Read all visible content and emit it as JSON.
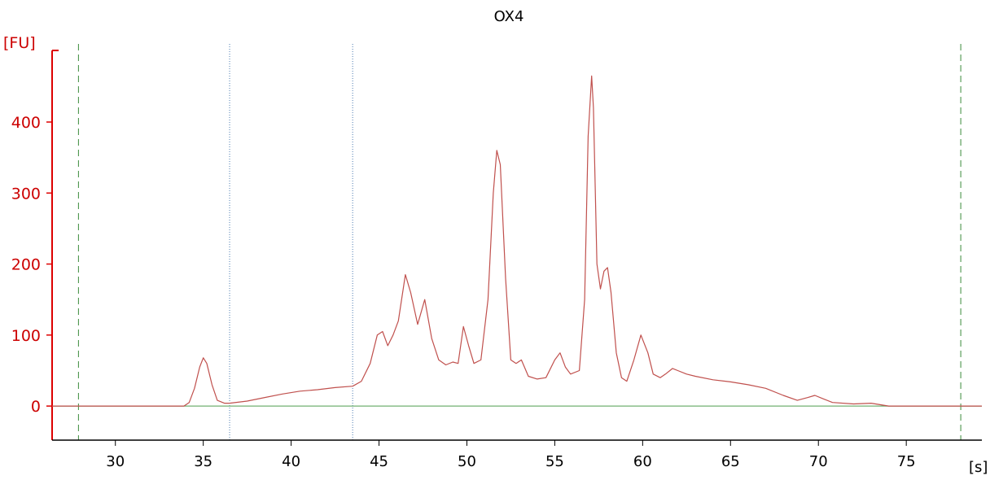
{
  "chart_data": {
    "type": "line",
    "title": "OX4",
    "xlabel": "[s]",
    "ylabel": "[FU]",
    "xlim": [
      26.4,
      79.3
    ],
    "ylim": [
      -48,
      510
    ],
    "xticks": [
      30,
      35,
      40,
      45,
      50,
      55,
      60,
      65,
      70,
      75
    ],
    "yticks": [
      0,
      100,
      200,
      300,
      400
    ],
    "grid": false,
    "colors": {
      "trace": "#c0504d",
      "y_axis": "#dd0000",
      "baseline": "#70b070",
      "marker_dashed": "#3a8a3a",
      "marker_dotted": "#4a7ab0"
    },
    "markers": [
      {
        "x": 27.9,
        "style": "dashed"
      },
      {
        "x": 36.5,
        "style": "dotted"
      },
      {
        "x": 43.5,
        "style": "dotted"
      },
      {
        "x": 78.1,
        "style": "dashed"
      }
    ],
    "baseline": 0,
    "series": [
      {
        "x": [
          26.4,
          33.9,
          34.2,
          34.5,
          34.8,
          35.0,
          35.2,
          35.5,
          35.8,
          36.2,
          36.5,
          37.5,
          38.5,
          39.5,
          40.5,
          41.5,
          42.5,
          43.5,
          44.0,
          44.5,
          44.9,
          45.2,
          45.5,
          45.8,
          46.1,
          46.5,
          46.8,
          47.2,
          47.6,
          48.0,
          48.4,
          48.8,
          49.2,
          49.5,
          49.8,
          50.1,
          50.4,
          50.8,
          51.2,
          51.5,
          51.7,
          51.9,
          52.2,
          52.5,
          52.8,
          53.1,
          53.5,
          54.0,
          54.5,
          55.0,
          55.3,
          55.6,
          55.9,
          56.4,
          56.7,
          56.9,
          57.1,
          57.2,
          57.4,
          57.6,
          57.8,
          58.0,
          58.2,
          58.5,
          58.8,
          59.1,
          59.5,
          59.9,
          60.3,
          60.6,
          61.0,
          61.3,
          61.7,
          62.0,
          62.5,
          63.0,
          64.0,
          65.0,
          66.0,
          67.0,
          68.0,
          68.8,
          69.4,
          69.8,
          70.3,
          70.8,
          72.0,
          73.0,
          73.5,
          74.0,
          79.3
        ],
        "y": [
          0,
          0,
          5,
          25,
          55,
          68,
          60,
          30,
          8,
          4,
          4,
          7,
          12,
          17,
          21,
          23,
          26,
          28,
          35,
          60,
          100,
          105,
          85,
          100,
          120,
          185,
          160,
          115,
          150,
          95,
          65,
          58,
          62,
          60,
          112,
          85,
          60,
          65,
          150,
          300,
          360,
          340,
          180,
          65,
          60,
          65,
          42,
          38,
          40,
          65,
          75,
          55,
          45,
          50,
          150,
          380,
          465,
          420,
          200,
          165,
          190,
          195,
          160,
          75,
          40,
          35,
          65,
          100,
          75,
          45,
          40,
          45,
          53,
          50,
          45,
          42,
          37,
          34,
          30,
          25,
          15,
          8,
          12,
          15,
          10,
          5,
          3,
          4,
          2,
          0,
          0
        ]
      }
    ]
  }
}
